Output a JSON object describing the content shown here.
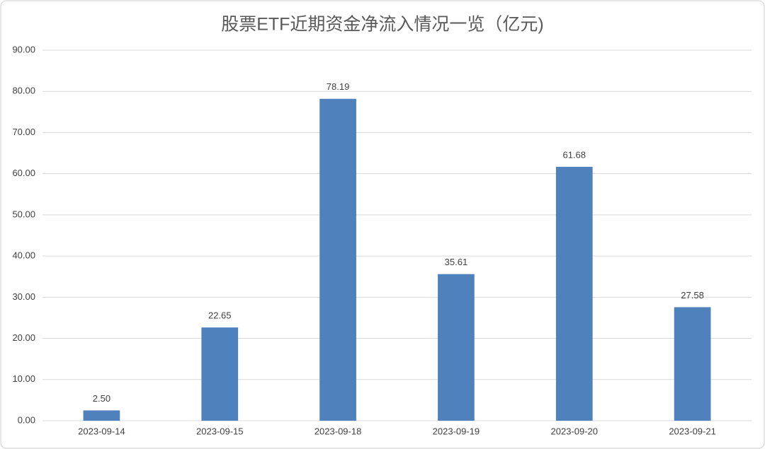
{
  "chart_data": {
    "type": "bar",
    "title": "股票ETF近期资金净流入情况一览（亿元)",
    "categories": [
      "2023-09-14",
      "2023-09-15",
      "2023-09-18",
      "2023-09-19",
      "2023-09-20",
      "2023-09-21"
    ],
    "values": [
      2.5,
      22.65,
      78.19,
      35.61,
      61.68,
      27.58
    ],
    "value_labels": [
      "2.50",
      "22.65",
      "78.19",
      "35.61",
      "61.68",
      "27.58"
    ],
    "color": "#4f81bd",
    "ylim": [
      0,
      90
    ],
    "yticks": [
      {
        "value": 0,
        "label": "0.00"
      },
      {
        "value": 10,
        "label": "10.00"
      },
      {
        "value": 20,
        "label": "20.00"
      },
      {
        "value": 30,
        "label": "30.00"
      },
      {
        "value": 40,
        "label": "40.00"
      },
      {
        "value": 50,
        "label": "50.00"
      },
      {
        "value": 60,
        "label": "60.00"
      },
      {
        "value": 70,
        "label": "70.00"
      },
      {
        "value": 80,
        "label": "80.00"
      },
      {
        "value": 90,
        "label": "90.00"
      }
    ],
    "grid": true
  }
}
